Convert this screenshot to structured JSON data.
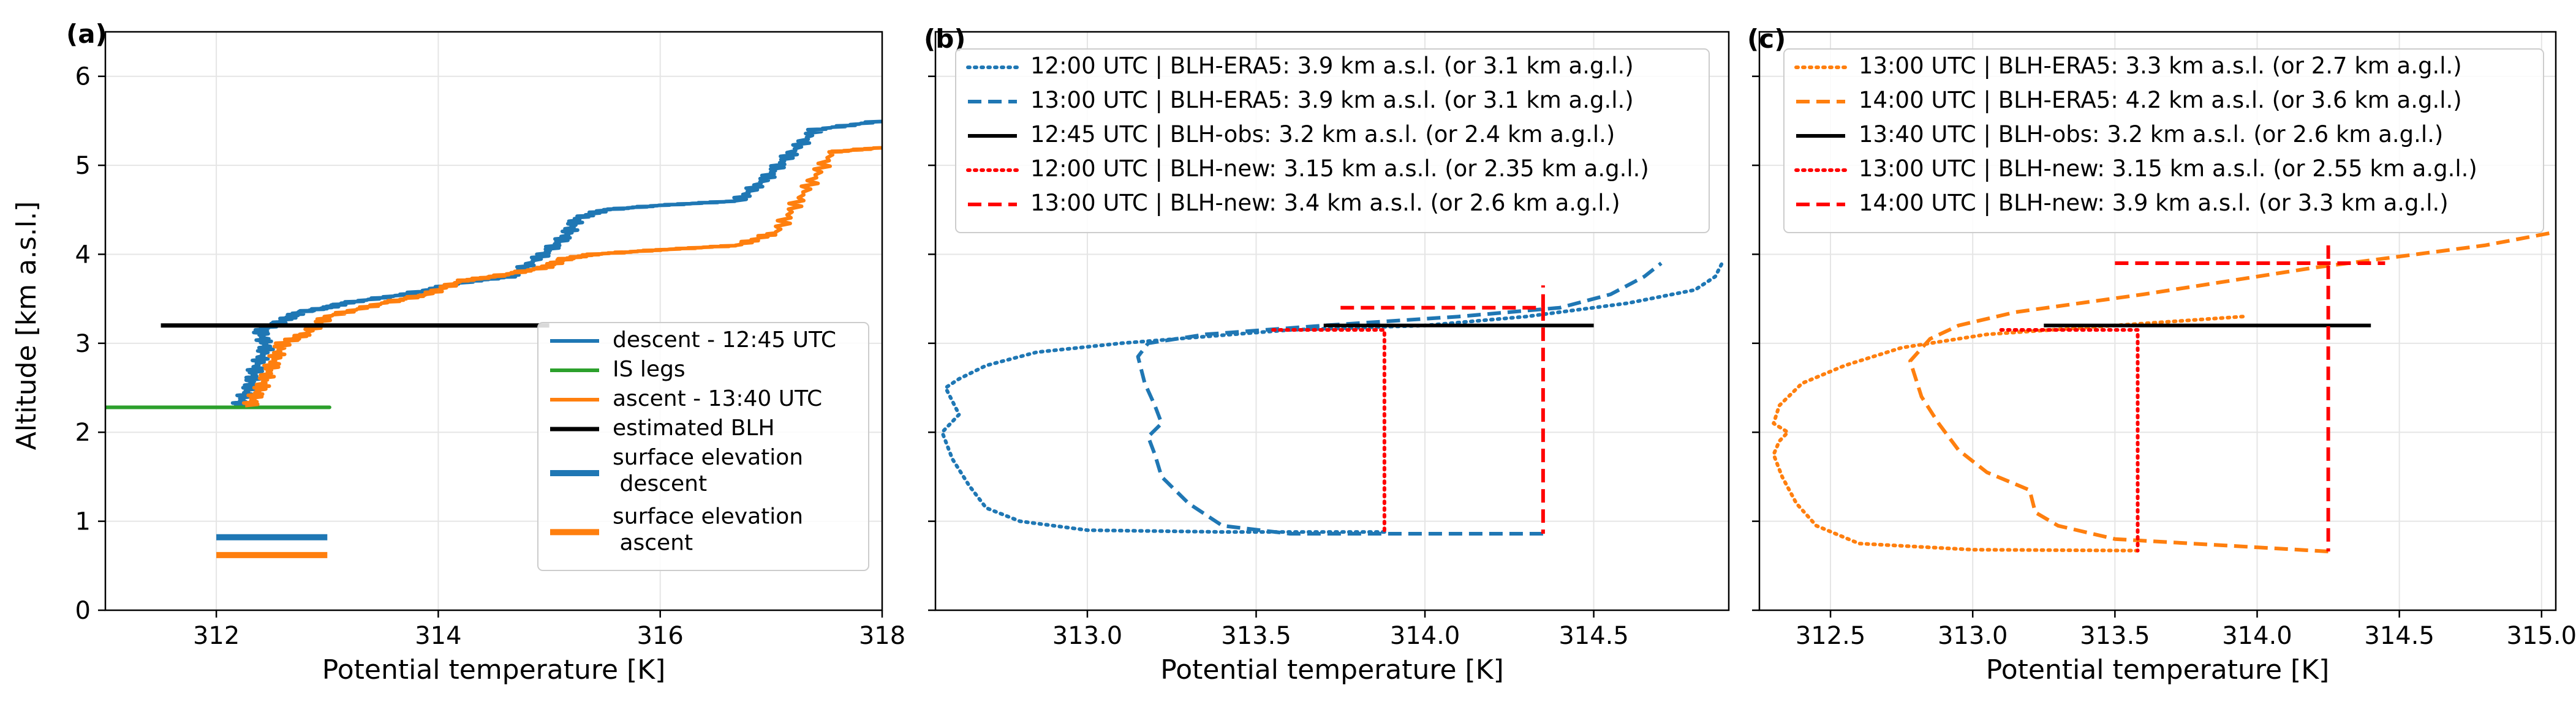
{
  "colors": {
    "blue": "#1f77b4",
    "orange": "#ff7f0e",
    "green": "#2ca02c",
    "black": "#000000",
    "red": "#ff0000",
    "grid": "#e5e5e5"
  },
  "chart_data": [
    {
      "type": "line",
      "panel_label": "(a)",
      "xlabel": "Potential temperature [K]",
      "ylabel": "Altitude [km a.s.l.]",
      "xlim": [
        311,
        318
      ],
      "ylim": [
        0,
        6.5
      ],
      "xticks": [
        312,
        314,
        316,
        318
      ],
      "yticks": [
        0,
        1,
        2,
        3,
        4,
        5,
        6
      ],
      "grid": true,
      "legend_position": "lower right",
      "series": [
        {
          "name": "descent - 12:45 UTC",
          "color": "#1f77b4",
          "style": "solid",
          "noisy": true,
          "x": [
            312.2,
            312.3,
            312.35,
            312.45,
            312.4,
            312.6,
            312.75,
            313.0,
            313.15,
            313.7,
            314.3,
            314.65,
            314.95,
            315.15,
            315.25,
            315.5,
            316.0,
            316.7,
            316.95,
            317.15,
            317.4,
            318.0
          ],
          "y": [
            2.3,
            2.5,
            2.7,
            2.95,
            3.15,
            3.25,
            3.35,
            3.4,
            3.45,
            3.55,
            3.7,
            3.75,
            4.0,
            4.2,
            4.4,
            4.5,
            4.55,
            4.6,
            4.85,
            5.1,
            5.4,
            5.5
          ]
        },
        {
          "name": "IS legs",
          "color": "#2ca02c",
          "style": "solid",
          "noisy": true,
          "x": [
            311.0,
            311.5,
            312.0,
            312.5,
            313.0
          ],
          "y": [
            2.28,
            2.28,
            2.28,
            2.28,
            2.28
          ]
        },
        {
          "name": "ascent - 13:40 UTC",
          "color": "#ff7f0e",
          "style": "solid",
          "noisy": true,
          "x": [
            312.3,
            312.4,
            312.5,
            312.6,
            312.8,
            313.0,
            313.5,
            313.9,
            314.2,
            314.5,
            314.95,
            315.15,
            315.4,
            316.0,
            316.7,
            317.05,
            317.3,
            317.55,
            318.0
          ],
          "y": [
            2.3,
            2.5,
            2.75,
            3.0,
            3.1,
            3.3,
            3.45,
            3.55,
            3.7,
            3.75,
            3.85,
            3.95,
            4.0,
            4.05,
            4.1,
            4.25,
            4.7,
            5.15,
            5.2
          ]
        },
        {
          "name": "estimated BLH",
          "color": "#000000",
          "style": "solid",
          "width": 7,
          "x": [
            311.5,
            315.0
          ],
          "y": [
            3.2,
            3.2
          ]
        },
        {
          "name": "surface elevation\n descent",
          "color": "#1f77b4",
          "style": "solid",
          "width": 10,
          "x": [
            312.0,
            313.0
          ],
          "y": [
            0.82,
            0.82
          ]
        },
        {
          "name": "surface elevation\n ascent",
          "color": "#ff7f0e",
          "style": "solid",
          "width": 10,
          "x": [
            312.0,
            313.0
          ],
          "y": [
            0.62,
            0.62
          ]
        }
      ]
    },
    {
      "type": "line",
      "panel_label": "(b)",
      "xlabel": "Potential temperature [K]",
      "ylabel": "",
      "xlim": [
        312.55,
        314.9
      ],
      "ylim": [
        0,
        6.5
      ],
      "xticks": [
        313.0,
        313.5,
        314.0,
        314.5
      ],
      "yticks": [
        0,
        1,
        2,
        3,
        4,
        5,
        6
      ],
      "grid": true,
      "legend_position": "top",
      "series": [
        {
          "name": "12:00 UTC  |  BLH-ERA5: 3.9 km a.s.l. (or 3.1 km a.g.l.)",
          "color": "#1f77b4",
          "style": "dotted",
          "x": [
            313.88,
            313.4,
            313.0,
            312.8,
            312.7,
            312.65,
            312.6,
            312.57,
            312.62,
            312.6,
            312.58,
            312.62,
            312.7,
            312.85,
            313.1,
            313.6,
            314.0,
            314.3,
            314.6,
            314.8,
            314.86,
            314.88
          ],
          "y": [
            0.88,
            0.88,
            0.9,
            1.0,
            1.15,
            1.4,
            1.7,
            2.0,
            2.2,
            2.35,
            2.5,
            2.6,
            2.75,
            2.9,
            3.0,
            3.15,
            3.2,
            3.3,
            3.45,
            3.6,
            3.75,
            3.9
          ]
        },
        {
          "name": "13:00 UTC  |  BLH-ERA5: 3.9 km a.s.l. (or 3.1 km a.g.l.)",
          "color": "#1f77b4",
          "style": "dashed",
          "x": [
            314.35,
            313.6,
            313.4,
            313.3,
            313.22,
            313.2,
            313.18,
            313.22,
            313.2,
            313.17,
            313.15,
            313.18,
            313.35,
            313.7,
            314.1,
            314.4,
            314.55,
            314.65,
            314.7
          ],
          "y": [
            0.86,
            0.86,
            0.95,
            1.2,
            1.5,
            1.75,
            1.95,
            2.1,
            2.3,
            2.55,
            2.85,
            3.0,
            3.1,
            3.2,
            3.3,
            3.4,
            3.55,
            3.75,
            3.9
          ]
        },
        {
          "name": "12:45 UTC  |  BLH-obs: 3.2 km a.s.l. (or 2.4 km a.g.l.)",
          "color": "#000000",
          "style": "solid",
          "x": [
            313.7,
            314.5
          ],
          "y": [
            3.2,
            3.2
          ]
        },
        {
          "name": "12:00 UTC  |  BLH-new: 3.15 km a.s.l. (or 2.35 km a.g.l.)",
          "color": "#ff0000",
          "style": "dotted",
          "x": [
            313.55,
            313.88,
            313.88
          ],
          "y": [
            3.15,
            3.15,
            0.88
          ]
        },
        {
          "name": "13:00 UTC  |  BLH-new: 3.4 km a.s.l. (or 2.6 km a.g.l.)",
          "color": "#ff0000",
          "style": "dashed",
          "x": [
            313.75,
            314.35,
            314.35
          ],
          "y": [
            3.4,
            3.4,
            0.86
          ]
        },
        {
          "name": "",
          "color": "#ff0000",
          "style": "dashed",
          "x": [
            314.35,
            314.35
          ],
          "y": [
            3.4,
            3.65
          ]
        }
      ]
    },
    {
      "type": "line",
      "panel_label": "(c)",
      "xlabel": "Potential temperature [K]",
      "ylabel": "",
      "xlim": [
        312.25,
        315.05
      ],
      "ylim": [
        0,
        6.5
      ],
      "xticks": [
        312.5,
        313.0,
        313.5,
        314.0,
        314.5,
        315.0
      ],
      "yticks": [
        0,
        1,
        2,
        3,
        4,
        5,
        6
      ],
      "grid": true,
      "legend_position": "top",
      "series": [
        {
          "name": "13:00 UTC  |  BLH-ERA5: 3.3 km a.s.l. (or 2.7 km a.g.l.)",
          "color": "#ff7f0e",
          "style": "dotted",
          "x": [
            313.58,
            313.0,
            312.6,
            312.45,
            312.38,
            312.33,
            312.3,
            312.32,
            312.35,
            312.3,
            312.32,
            312.4,
            312.55,
            312.75,
            313.05,
            313.5,
            313.95
          ],
          "y": [
            0.67,
            0.68,
            0.75,
            0.95,
            1.2,
            1.5,
            1.75,
            1.9,
            2.0,
            2.1,
            2.3,
            2.55,
            2.75,
            2.95,
            3.1,
            3.2,
            3.3
          ]
        },
        {
          "name": "14:00 UTC  |  BLH-ERA5: 4.2 km a.s.l. (or 3.6 km a.g.l.)",
          "color": "#ff7f0e",
          "style": "dashed",
          "x": [
            314.25,
            313.5,
            313.3,
            313.22,
            313.2,
            313.05,
            312.95,
            312.88,
            312.82,
            312.78,
            312.85,
            312.95,
            313.15,
            313.6,
            314.2,
            314.8,
            315.05
          ],
          "y": [
            0.66,
            0.8,
            0.95,
            1.1,
            1.35,
            1.55,
            1.8,
            2.1,
            2.4,
            2.8,
            3.05,
            3.2,
            3.35,
            3.55,
            3.85,
            4.1,
            4.25
          ]
        },
        {
          "name": "13:40 UTC  |  BLH-obs: 3.2 km a.s.l. (or 2.6 km a.g.l.)",
          "color": "#000000",
          "style": "solid",
          "x": [
            313.25,
            314.4
          ],
          "y": [
            3.2,
            3.2
          ]
        },
        {
          "name": "13:00 UTC  |  BLH-new: 3.15 km a.s.l. (or 2.55 km a.g.l.)",
          "color": "#ff0000",
          "style": "dotted",
          "x": [
            313.1,
            313.58,
            313.58
          ],
          "y": [
            3.15,
            3.15,
            0.67
          ]
        },
        {
          "name": "14:00 UTC  |  BLH-new: 3.9 km a.s.l. (or 3.3 km a.g.l.)",
          "color": "#ff0000",
          "style": "dashed",
          "x": [
            313.5,
            314.45
          ],
          "y": [
            3.9,
            3.9
          ]
        },
        {
          "name": "",
          "color": "#ff0000",
          "style": "dashed",
          "x": [
            314.25,
            314.25
          ],
          "y": [
            4.1,
            0.66
          ]
        }
      ]
    }
  ]
}
